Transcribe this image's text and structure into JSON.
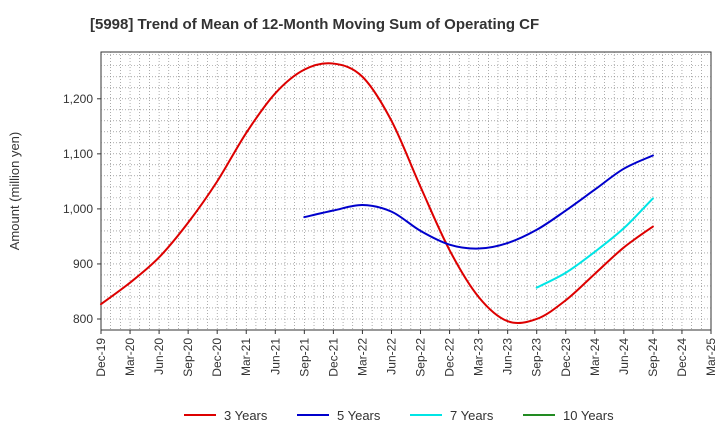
{
  "chart_data": {
    "type": "line",
    "title": "[5998]  Trend of Mean of 12-Month Moving Sum of Operating CF",
    "xlabel": "",
    "ylabel": "Amount (million yen)",
    "ylim": [
      780,
      1285
    ],
    "yticks": [
      800,
      900,
      1000,
      1100,
      1200
    ],
    "ytick_labels": [
      "800",
      "900",
      "1,000",
      "1,100",
      "1,200"
    ],
    "x_range": [
      "Dec-19",
      "Mar-25"
    ],
    "xtick_labels": [
      "Dec-19",
      "Mar-20",
      "Jun-20",
      "Sep-20",
      "Dec-20",
      "Mar-21",
      "Jun-21",
      "Sep-21",
      "Dec-21",
      "Mar-22",
      "Jun-22",
      "Sep-22",
      "Dec-22",
      "Mar-23",
      "Jun-23",
      "Sep-23",
      "Dec-23",
      "Mar-24",
      "Jun-24",
      "Sep-24",
      "Dec-24",
      "Mar-25"
    ],
    "grid": true,
    "legend_position": "bottom",
    "series": [
      {
        "name": "3 Years",
        "color": "#dd0000",
        "x": [
          "Dec-19",
          "Mar-20",
          "Jun-20",
          "Sep-20",
          "Dec-20",
          "Mar-21",
          "Jun-21",
          "Sep-21",
          "Dec-21",
          "Mar-22",
          "Jun-22",
          "Sep-22",
          "Dec-22",
          "Mar-23",
          "Jun-23",
          "Sep-23",
          "Dec-23",
          "Mar-24",
          "Jun-24",
          "Sep-24"
        ],
        "values": [
          827,
          866,
          912,
          975,
          1050,
          1138,
          1210,
          1253,
          1264,
          1240,
          1160,
          1040,
          925,
          840,
          796,
          800,
          834,
          882,
          930,
          968
        ]
      },
      {
        "name": "5 Years",
        "color": "#0000cc",
        "x": [
          "Sep-21",
          "Dec-21",
          "Mar-22",
          "Jun-22",
          "Sep-22",
          "Dec-22",
          "Mar-23",
          "Jun-23",
          "Sep-23",
          "Dec-23",
          "Mar-24",
          "Jun-24",
          "Sep-24"
        ],
        "values": [
          985,
          997,
          1007,
          995,
          960,
          935,
          928,
          938,
          962,
          997,
          1035,
          1073,
          1097
        ]
      },
      {
        "name": "7 Years",
        "color": "#00e5e5",
        "x": [
          "Sep-23",
          "Dec-23",
          "Mar-24",
          "Jun-24",
          "Sep-24"
        ],
        "values": [
          857,
          884,
          922,
          965,
          1019
        ]
      },
      {
        "name": "10 Years",
        "color": "#228b22",
        "x": [],
        "values": []
      }
    ]
  }
}
